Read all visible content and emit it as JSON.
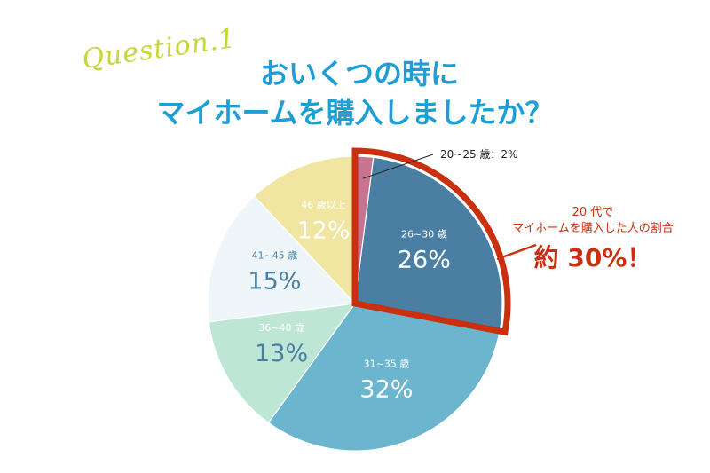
{
  "header": {
    "question_label": "Question.1",
    "title_line1": "おいくつの時に",
    "title_line2": "マイホームを購入しましたか？"
  },
  "chart_data": {
    "type": "pie",
    "slices": [
      {
        "label": "20~25 歳：2%",
        "value": 2,
        "pct_text": "",
        "color": "#c9748f"
      },
      {
        "label": "26~30 歳",
        "value": 26,
        "pct_text": "26%",
        "color": "#4a7fa3"
      },
      {
        "label": "31~35 歳",
        "value": 32,
        "pct_text": "32%",
        "color": "#6cb5ce"
      },
      {
        "label": "36~40 歳",
        "value": 13,
        "pct_text": "13%",
        "color": "#bde6d4"
      },
      {
        "label": "41~45 歳",
        "value": 15,
        "pct_text": "15%",
        "color": "#eef6f9"
      },
      {
        "label": "46 歳以上",
        "value": 12,
        "pct_text": "12%",
        "color": "#f0e6a2"
      }
    ],
    "annotation": {
      "line1": "20 代で",
      "line2": "マイホームを購入した人の割合",
      "value": "約 30%！"
    }
  },
  "colors": {
    "highlight": "#c9300f",
    "title": "#1f9ed6",
    "question": "#c7d63a"
  }
}
